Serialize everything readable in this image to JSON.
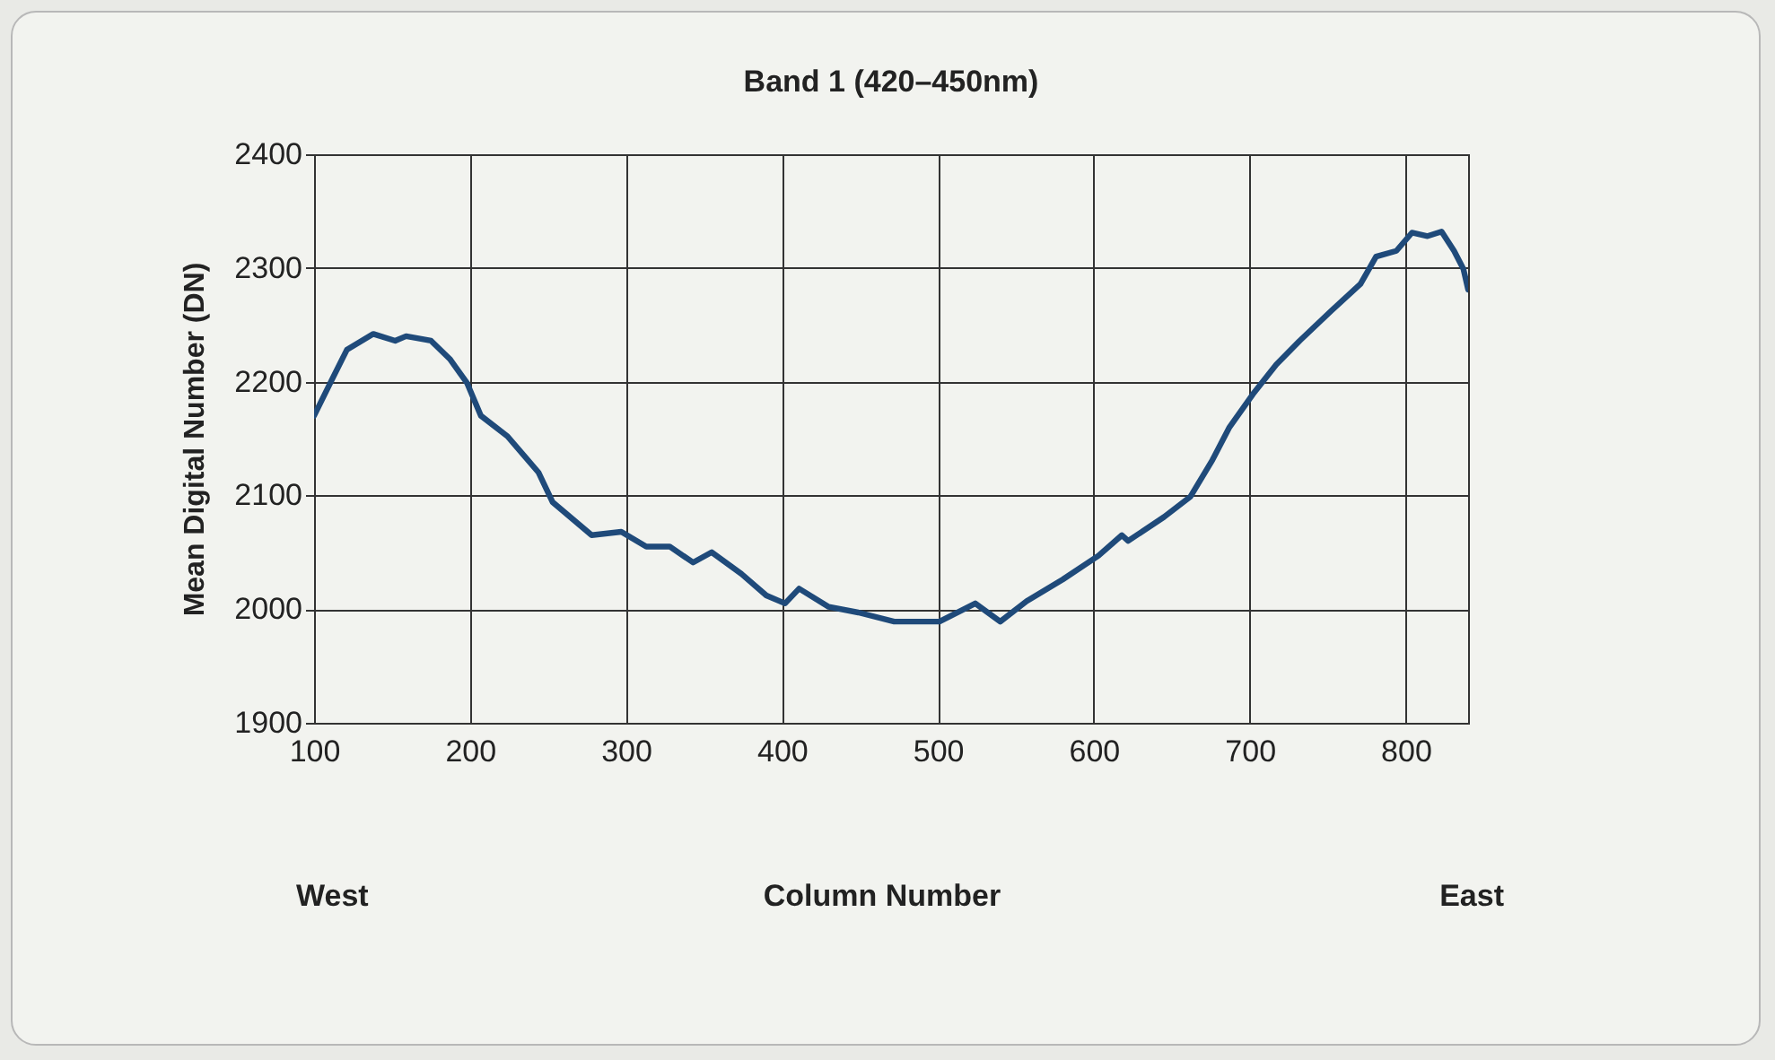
{
  "chart_data": {
    "type": "line",
    "title": "Band 1 (420–450nm)",
    "xlabel": "Column Number",
    "ylabel": "Mean Digital Number (DN)",
    "annotations": [
      "West",
      "East"
    ],
    "series": [
      {
        "color": "#1f4a7a",
        "x": [
          100,
          111.5,
          121,
          138,
          152,
          159,
          175,
          187,
          198,
          207,
          224,
          244,
          253,
          278,
          297,
          313,
          328,
          343,
          355,
          374,
          390,
          402,
          411,
          430,
          449,
          472,
          501,
          524,
          540,
          557,
          580,
          603,
          618,
          622,
          645,
          662,
          676,
          687,
          702,
          717,
          732,
          752,
          771,
          781,
          794,
          804,
          814,
          823,
          831,
          837,
          840
        ],
        "values": [
          2170,
          2202,
          2228,
          2242,
          2236,
          2240,
          2236,
          2220,
          2199,
          2170,
          2152,
          2120,
          2094,
          2065,
          2068,
          2055,
          2055,
          2041,
          2050,
          2031,
          2012,
          2005,
          2018,
          2002,
          1997,
          1989,
          1989,
          2005,
          1989,
          2007,
          2026,
          2047,
          2065,
          2060,
          2081,
          2099,
          2131,
          2160,
          2189,
          2215,
          2236,
          2262,
          2286,
          2310,
          2315,
          2331,
          2328,
          2332,
          2315,
          2299,
          2281
        ]
      }
    ],
    "xlim": [
      100,
      840
    ],
    "xticks": [
      100,
      200,
      300,
      400,
      500,
      600,
      700,
      800
    ],
    "ylim": [
      1900,
      2400
    ],
    "yticks": [
      1900,
      2000,
      2100,
      2200,
      2300,
      2400
    ],
    "grid": true,
    "line_style": "solid",
    "marker": "none"
  }
}
